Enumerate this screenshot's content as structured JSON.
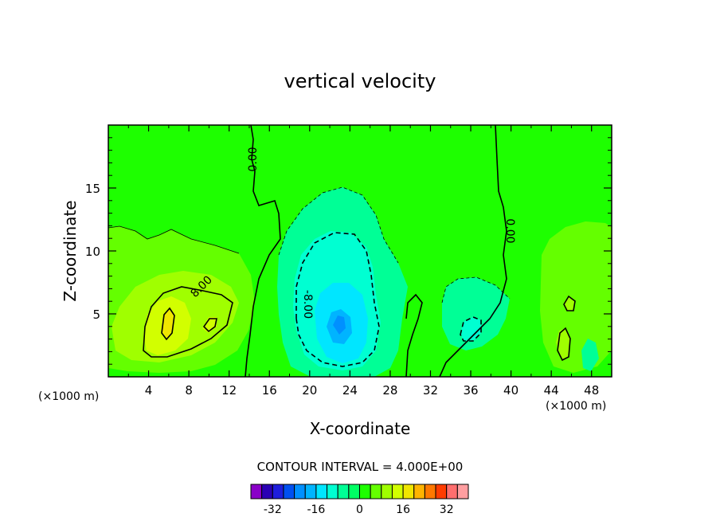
{
  "chart_data": {
    "type": "heatmap",
    "title": "vertical velocity",
    "xlabel": "X-coordinate",
    "ylabel": "Z-coordinate",
    "x_unit_label": "(×1000 m)",
    "xlim": [
      0,
      50
    ],
    "ylim": [
      0,
      20
    ],
    "x_ticks": [
      4,
      8,
      12,
      16,
      20,
      24,
      28,
      32,
      36,
      40,
      44,
      48
    ],
    "y_ticks": [
      5,
      10,
      15
    ],
    "contour_interval_text": "CONTOUR INTERVAL = 4.000E+00",
    "contour_labels": [
      "0.00",
      "0.00",
      "-8.00",
      "8.00"
    ],
    "colorbar": {
      "levels": [
        -36,
        -32,
        -28,
        -24,
        -20,
        -16,
        -12,
        -8,
        -4,
        0,
        4,
        8,
        12,
        16,
        20,
        24,
        28,
        32,
        36
      ],
      "tick_labels": [
        "-32",
        "-16",
        "0",
        "16",
        "32"
      ],
      "tick_values": [
        -32,
        -16,
        0,
        16,
        32
      ],
      "colors": [
        "#8a00c8",
        "#2a00b4",
        "#1e1edc",
        "#0050f0",
        "#0090ff",
        "#00b4ff",
        "#00e6ff",
        "#00ffd2",
        "#00ff96",
        "#00ff64",
        "#1eff00",
        "#64ff00",
        "#a0ff00",
        "#d2ff00",
        "#f0e600",
        "#ffb400",
        "#ff7800",
        "#ff3c00",
        "#ff6e6e",
        "#ff9ea0"
      ]
    },
    "features": [
      {
        "kind": "updraft_max",
        "x": 5.5,
        "z": 4.5,
        "value": 12
      },
      {
        "kind": "downdraft_min",
        "x": 23,
        "z": 4,
        "value": -24
      },
      {
        "kind": "downdraft",
        "x": 35,
        "z": 4,
        "value": -8
      }
    ]
  }
}
